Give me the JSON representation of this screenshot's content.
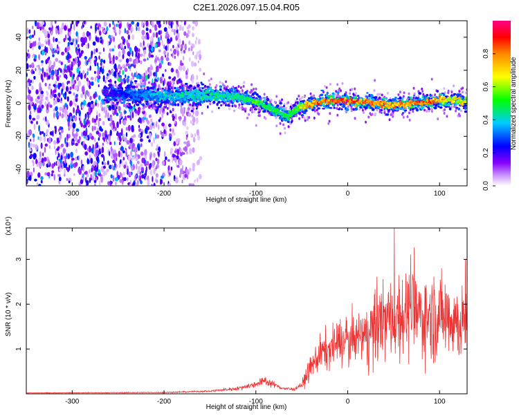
{
  "title": "C2E1.2026.097.15.04.R05",
  "chart_data": [
    {
      "type": "heatmap",
      "xlabel": "Height of straight line (km)",
      "ylabel": "Frequency (Hz)",
      "xlim": [
        -350,
        130
      ],
      "ylim": [
        -50,
        50
      ],
      "x_ticks": [
        -300,
        -200,
        -100,
        0,
        100
      ],
      "y_ticks": [
        -40,
        -20,
        0,
        20,
        40
      ],
      "grid": false,
      "colorbar": {
        "label": "Normalized spectral amplitude",
        "range": [
          0,
          1
        ],
        "ticks": [
          "0.0",
          "0.2",
          "0.4",
          "0.6",
          "0.8"
        ],
        "colors": [
          "#ffffff",
          "#8800ff",
          "#0000ff",
          "#00ffff",
          "#00ff00",
          "#ffff00",
          "#ff8800",
          "#ff0000",
          "#ff0088"
        ]
      },
      "ridge_track": {
        "x": [
          -260,
          -220,
          -200,
          -160,
          -120,
          -100,
          -80,
          -65,
          -55,
          -45,
          -30,
          -10,
          10,
          30,
          50,
          70,
          90,
          110,
          130
        ],
        "y": [
          6,
          5,
          4,
          5,
          4,
          1,
          -4,
          -8,
          -3,
          -1,
          1,
          2,
          1,
          0,
          -1,
          0,
          1,
          2,
          1
        ],
        "amp": [
          0.2,
          0.35,
          0.4,
          0.45,
          0.45,
          0.55,
          0.5,
          0.5,
          0.6,
          0.75,
          0.85,
          0.9,
          0.85,
          0.8,
          0.8,
          0.8,
          0.85,
          0.7,
          0.7
        ]
      },
      "noise_region": {
        "x": [
          -350,
          -170
        ],
        "amp": 0.3
      }
    },
    {
      "type": "line",
      "xlabel": "Height of straight line (km)",
      "ylabel": "SNR (10 * v/v)",
      "y_multiplier": "(x10⁴)",
      "xlim": [
        -350,
        130
      ],
      "ylim": [
        0,
        3.7
      ],
      "x_ticks": [
        -300,
        -200,
        -100,
        0,
        100
      ],
      "y_ticks": [
        1,
        2,
        3
      ],
      "grid": false,
      "series": [
        {
          "color": "#ee3333",
          "x": [
            -350,
            -200,
            -150,
            -120,
            -100,
            -90,
            -80,
            -70,
            -60,
            -50,
            -40,
            -30,
            -20,
            -10,
            0,
            20,
            40,
            60,
            80,
            100,
            110,
            120,
            130
          ],
          "y": [
            0.02,
            0.03,
            0.06,
            0.12,
            0.22,
            0.3,
            0.2,
            0.12,
            0.1,
            0.2,
            0.6,
            0.9,
            1.0,
            1.15,
            1.2,
            1.3,
            1.6,
            1.8,
            1.75,
            1.7,
            1.8,
            1.6,
            1.5
          ]
        }
      ]
    }
  ]
}
